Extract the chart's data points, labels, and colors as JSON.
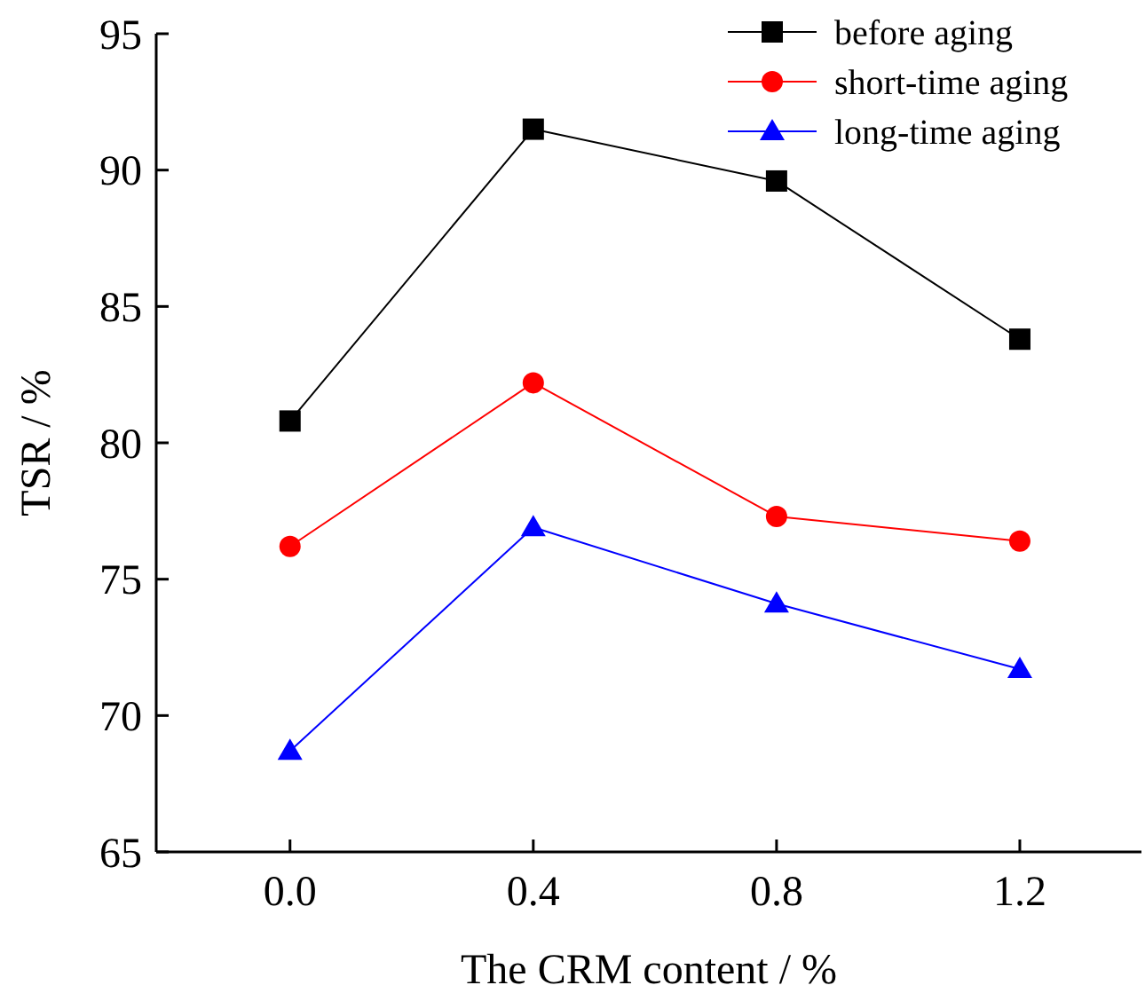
{
  "chart_data": {
    "type": "line",
    "xlabel": "The CRM content / %",
    "ylabel": "TSR / %",
    "x": [
      0,
      0.4,
      0.8,
      1.2
    ],
    "xlim": [
      -0.22,
      1.4
    ],
    "xticks": [
      {
        "value": 0,
        "label": "0.0"
      },
      0.4,
      0.8,
      1.2
    ],
    "ylim": [
      65,
      95
    ],
    "yticks": [
      65,
      70,
      75,
      80,
      85,
      90,
      95
    ],
    "legend": "top right",
    "grid": false,
    "series": [
      {
        "name": "before aging",
        "color": "#000000",
        "marker": "square",
        "values": [
          80.8,
          91.5,
          89.6,
          83.8
        ]
      },
      {
        "name": "short-time aging",
        "color": "#ff0000",
        "marker": "circle",
        "values": [
          76.2,
          82.2,
          77.3,
          76.4
        ]
      },
      {
        "name": "long-time aging",
        "color": "#0000ff",
        "marker": "triangle",
        "values": [
          68.7,
          76.9,
          74.1,
          71.7
        ]
      }
    ]
  }
}
